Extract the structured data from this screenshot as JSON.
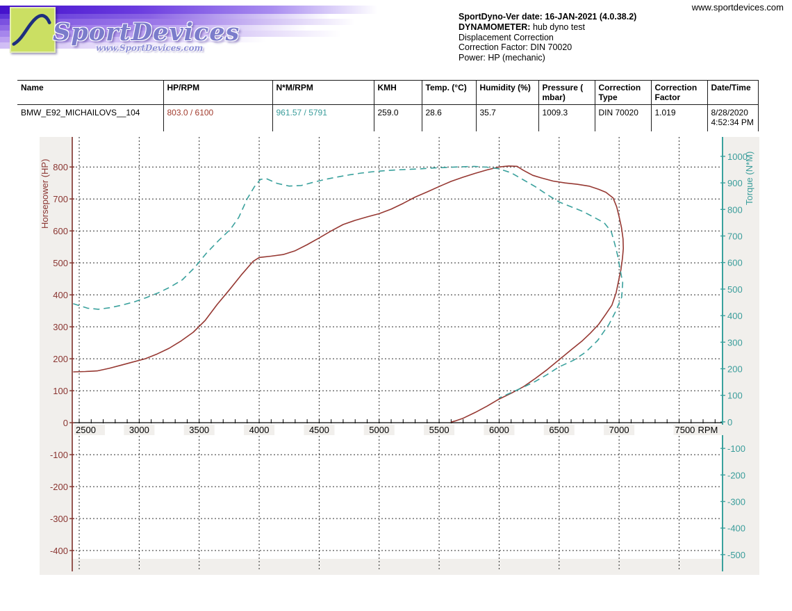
{
  "page": {
    "website_url": "www.sportdevices.com"
  },
  "logo": {
    "brand": "SportDevices",
    "sub_url": "www.SportDevices.com",
    "colors": {
      "square_green": "#cbdf63",
      "curve_blue": "#1e2f7e",
      "text_purple": "#7b7ccb",
      "band_purple": "#5a2ed8"
    }
  },
  "info": {
    "lines": [
      {
        "label": "SportDyno-Ver date:",
        "value": "16-JAN-2021 (4.0.38.2)",
        "value_bold": true
      },
      {
        "label": "DYNAMOMETER:",
        "value": "hub dyno test",
        "value_bold": false
      },
      {
        "label": "",
        "value": "Displacement Correction"
      },
      {
        "label": "",
        "value": "Correction Factor: DIN 70020"
      },
      {
        "label": "",
        "value": "Power: HP (mechanic)"
      }
    ]
  },
  "table": {
    "columns": [
      "Name",
      "HP/RPM",
      "N*M/RPM",
      "KMH",
      "Temp. (°C)",
      "Humidity (%)",
      "Pressure ( mbar)",
      "Correction Type",
      "Correction Factor",
      "Date/Time"
    ],
    "rows": [
      [
        "BMW_E92_MICHAILOVS__104",
        "803.0 / 6100",
        "961.57 / 5791",
        "259.0",
        "28.6",
        "35.7",
        "1009.3",
        "DIN 70020",
        "1.019",
        "8/28/2020 4:52:34 PM"
      ]
    ],
    "value_colors": {
      "hp": "#a23c2e",
      "torque": "#3a9d9b"
    }
  },
  "chart_data": {
    "type": "line",
    "title": "",
    "x_axis": {
      "label": "RPM",
      "ticks": [
        2500,
        3000,
        3500,
        4000,
        4500,
        5000,
        5500,
        6000,
        6500,
        7000,
        7500
      ],
      "minor_tick_step": 100,
      "range": [
        2442,
        7862
      ]
    },
    "left_axis": {
      "label": "Horsepower (HP)",
      "color": "#8a3531",
      "axis_line_color": "#7e2f2a",
      "ticks": [
        800,
        700,
        600,
        500,
        400,
        300,
        200,
        100,
        0,
        -100,
        -200,
        -300,
        -400
      ],
      "range_at_plot": [
        -426,
        894
      ]
    },
    "right_axis": {
      "label": "Torque (N*M)",
      "color": "#3a9d9b",
      "axis_line_color": "#3aa19d",
      "ticks": [
        1000,
        900,
        800,
        700,
        600,
        500,
        400,
        300,
        200,
        100,
        0,
        -100,
        -200,
        -300,
        -400,
        -500
      ],
      "range_at_plot": [
        -516,
        1073
      ]
    },
    "grid": "dotted",
    "legend": "none",
    "peaks": {
      "power_hp": 803.0,
      "power_rpm": 6100,
      "torque_nm": 961.57,
      "torque_rpm": 5791
    },
    "series": [
      {
        "name": "Power",
        "unit": "HP",
        "axis": "left",
        "color": "#963832",
        "line": "solid",
        "points": [
          [
            2450,
            159
          ],
          [
            2550,
            160
          ],
          [
            2650,
            162
          ],
          [
            2750,
            170
          ],
          [
            2850,
            180
          ],
          [
            2950,
            190
          ],
          [
            3050,
            200
          ],
          [
            3150,
            215
          ],
          [
            3250,
            233
          ],
          [
            3350,
            256
          ],
          [
            3450,
            283
          ],
          [
            3550,
            320
          ],
          [
            3650,
            370
          ],
          [
            3750,
            415
          ],
          [
            3850,
            462
          ],
          [
            3950,
            505
          ],
          [
            4000,
            517
          ],
          [
            4100,
            521
          ],
          [
            4200,
            526
          ],
          [
            4300,
            538
          ],
          [
            4400,
            557
          ],
          [
            4500,
            578
          ],
          [
            4600,
            600
          ],
          [
            4700,
            620
          ],
          [
            4800,
            633
          ],
          [
            4900,
            644
          ],
          [
            5000,
            654
          ],
          [
            5100,
            668
          ],
          [
            5200,
            686
          ],
          [
            5300,
            706
          ],
          [
            5400,
            722
          ],
          [
            5500,
            739
          ],
          [
            5600,
            755
          ],
          [
            5700,
            768
          ],
          [
            5800,
            780
          ],
          [
            5900,
            791
          ],
          [
            6000,
            800
          ],
          [
            6080,
            803
          ],
          [
            6150,
            802
          ],
          [
            6200,
            790
          ],
          [
            6280,
            774
          ],
          [
            6350,
            766
          ],
          [
            6450,
            756
          ],
          [
            6550,
            750
          ],
          [
            6650,
            746
          ],
          [
            6750,
            740
          ],
          [
            6830,
            730
          ],
          [
            6890,
            721
          ],
          [
            6950,
            703
          ],
          [
            6980,
            675
          ],
          [
            7000,
            645
          ],
          [
            7020,
            610
          ],
          [
            7033,
            575
          ],
          [
            7035,
            545
          ],
          [
            7028,
            515
          ],
          [
            7015,
            478
          ],
          [
            6998,
            448
          ],
          [
            6975,
            406
          ],
          [
            6940,
            368
          ],
          [
            6890,
            340
          ],
          [
            6830,
            308
          ],
          [
            6760,
            280
          ],
          [
            6690,
            255
          ],
          [
            6600,
            228
          ],
          [
            6500,
            197
          ],
          [
            6400,
            166
          ],
          [
            6300,
            138
          ],
          [
            6200,
            112
          ],
          [
            6100,
            92
          ],
          [
            6000,
            74
          ],
          [
            5900,
            52
          ],
          [
            5800,
            32
          ],
          [
            5700,
            14
          ],
          [
            5640,
            6
          ],
          [
            5600,
            2
          ]
        ]
      },
      {
        "name": "Torque",
        "unit": "N*M",
        "axis": "right",
        "color": "#3aa19d",
        "line": "dashed",
        "points": [
          [
            2450,
            445
          ],
          [
            2500,
            438
          ],
          [
            2570,
            428
          ],
          [
            2660,
            424
          ],
          [
            2760,
            430
          ],
          [
            2860,
            440
          ],
          [
            2960,
            452
          ],
          [
            3060,
            468
          ],
          [
            3160,
            486
          ],
          [
            3260,
            508
          ],
          [
            3360,
            535
          ],
          [
            3460,
            580
          ],
          [
            3560,
            635
          ],
          [
            3660,
            682
          ],
          [
            3760,
            725
          ],
          [
            3830,
            770
          ],
          [
            3900,
            840
          ],
          [
            3960,
            885
          ],
          [
            4010,
            913
          ],
          [
            4060,
            916
          ],
          [
            4150,
            898
          ],
          [
            4250,
            888
          ],
          [
            4350,
            890
          ],
          [
            4450,
            902
          ],
          [
            4550,
            913
          ],
          [
            4650,
            922
          ],
          [
            4750,
            930
          ],
          [
            4850,
            937
          ],
          [
            4950,
            942
          ],
          [
            5050,
            946
          ],
          [
            5150,
            949
          ],
          [
            5250,
            951
          ],
          [
            5350,
            953
          ],
          [
            5450,
            956
          ],
          [
            5550,
            958
          ],
          [
            5650,
            960
          ],
          [
            5791,
            962
          ],
          [
            5900,
            959
          ],
          [
            6000,
            953
          ],
          [
            6100,
            938
          ],
          [
            6200,
            912
          ],
          [
            6300,
            886
          ],
          [
            6400,
            856
          ],
          [
            6500,
            828
          ],
          [
            6600,
            810
          ],
          [
            6700,
            792
          ],
          [
            6800,
            768
          ],
          [
            6875,
            750
          ],
          [
            6935,
            716
          ],
          [
            6965,
            668
          ],
          [
            6990,
            622
          ],
          [
            7008,
            576
          ],
          [
            7030,
            524
          ],
          [
            7022,
            470
          ],
          [
            6975,
            419
          ],
          [
            6915,
            367
          ],
          [
            6820,
            306
          ],
          [
            6720,
            262
          ],
          [
            6620,
            232
          ],
          [
            6500,
            207
          ],
          [
            6400,
            178
          ],
          [
            6300,
            152
          ],
          [
            6200,
            130
          ],
          [
            6100,
            110
          ],
          [
            6000,
            90
          ]
        ]
      }
    ]
  }
}
